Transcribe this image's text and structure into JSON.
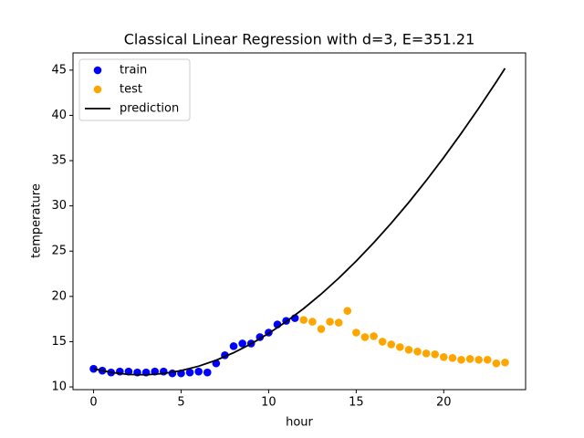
{
  "chart_data": {
    "type": "scatter",
    "title": "Classical Linear Regression with d=3, E=351.21",
    "xlabel": "hour",
    "ylabel": "temperature",
    "xlim": [
      -1.175,
      24.675
    ],
    "ylim": [
      9.7,
      46.9
    ],
    "xticks": [
      0,
      5,
      10,
      15,
      20
    ],
    "yticks": [
      10,
      15,
      20,
      25,
      30,
      35,
      40,
      45
    ],
    "legend": "upper left",
    "series": [
      {
        "name": "train",
        "type": "scatter",
        "color": "#0000ff",
        "x": [
          0,
          0.5,
          1,
          1.5,
          2,
          2.5,
          3,
          3.5,
          4,
          4.5,
          5,
          5.5,
          6,
          6.5,
          7,
          7.5,
          8,
          8.5,
          9,
          9.5,
          10,
          10.5,
          11,
          11.5
        ],
        "values": [
          12.0,
          11.8,
          11.6,
          11.7,
          11.7,
          11.6,
          11.6,
          11.7,
          11.7,
          11.5,
          11.5,
          11.6,
          11.7,
          11.6,
          12.6,
          13.5,
          14.5,
          14.8,
          14.8,
          15.5,
          16.0,
          16.9,
          17.3,
          17.6
        ]
      },
      {
        "name": "test",
        "type": "scatter",
        "color": "#ffa500",
        "x": [
          12,
          12.5,
          13,
          13.5,
          14,
          14.5,
          15,
          15.5,
          16,
          16.5,
          17,
          17.5,
          18,
          18.5,
          19,
          19.5,
          20,
          20.5,
          21,
          21.5,
          22,
          22.5,
          23,
          23.5
        ],
        "values": [
          17.4,
          17.2,
          16.4,
          17.2,
          17.1,
          18.4,
          16.0,
          15.5,
          15.6,
          15.0,
          14.7,
          14.4,
          14.1,
          13.9,
          13.7,
          13.6,
          13.3,
          13.2,
          13.0,
          13.1,
          13.0,
          13.0,
          12.6,
          12.7
        ]
      },
      {
        "name": "prediction",
        "type": "line",
        "color": "#000000",
        "x": [
          0,
          1,
          2,
          3,
          4,
          5,
          6,
          7,
          8,
          9,
          10,
          11,
          12,
          13,
          14,
          15,
          16,
          17,
          18,
          19,
          20,
          21,
          22,
          23,
          23.5
        ],
        "values": [
          12.0,
          11.6,
          11.38,
          11.34,
          11.48,
          11.8,
          12.29,
          12.95,
          13.78,
          14.76,
          15.91,
          17.21,
          18.66,
          20.26,
          22.01,
          23.9,
          25.93,
          28.09,
          30.38,
          32.8,
          35.35,
          38.02,
          40.8,
          43.7,
          45.2
        ]
      }
    ]
  }
}
